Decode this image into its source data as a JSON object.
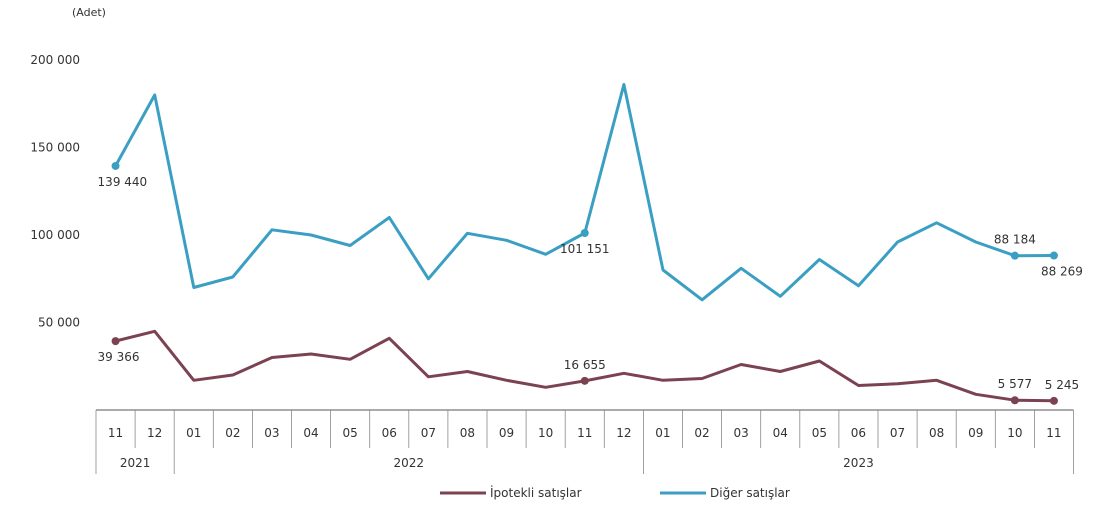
{
  "chart_data": {
    "type": "line",
    "unit_label": "(Adet)",
    "ylim": [
      0,
      200000
    ],
    "y_ticks": [
      50000,
      100000,
      150000,
      200000
    ],
    "y_tick_labels": [
      "50 000",
      "100 000",
      "150 000",
      "200 000"
    ],
    "categories": [
      "11",
      "12",
      "01",
      "02",
      "03",
      "04",
      "05",
      "06",
      "07",
      "08",
      "09",
      "10",
      "11",
      "12",
      "01",
      "02",
      "03",
      "04",
      "05",
      "06",
      "07",
      "08",
      "09",
      "10",
      "11"
    ],
    "years": [
      {
        "label": "2021",
        "start": 0,
        "end": 1
      },
      {
        "label": "2022",
        "start": 2,
        "end": 13
      },
      {
        "label": "2023",
        "start": 14,
        "end": 24
      }
    ],
    "series": [
      {
        "name": "İpotekli satışlar",
        "color": "#7b4252",
        "values": [
          39366,
          45000,
          17000,
          20000,
          30000,
          32000,
          29000,
          41000,
          19000,
          22000,
          17000,
          13000,
          16655,
          21000,
          17000,
          18000,
          26000,
          22000,
          28000,
          14000,
          15000,
          17000,
          9000,
          5577,
          5245
        ],
        "labels": [
          {
            "index": 0,
            "text": "39 366",
            "position": "below"
          },
          {
            "index": 12,
            "text": "16 655",
            "position": "above"
          },
          {
            "index": 23,
            "text": "5 577",
            "position": "above"
          },
          {
            "index": 24,
            "text": "5 245",
            "position": "above"
          }
        ]
      },
      {
        "name": "Diğer satışlar",
        "color": "#3a9fc2",
        "values": [
          139440,
          180000,
          70000,
          76000,
          103000,
          100000,
          94000,
          110000,
          75000,
          101000,
          97000,
          89000,
          101151,
          186000,
          80000,
          63000,
          81000,
          65000,
          86000,
          71000,
          96000,
          107000,
          96000,
          88184,
          88269
        ],
        "labels": [
          {
            "index": 0,
            "text": "139 440",
            "position": "below"
          },
          {
            "index": 12,
            "text": "101 151",
            "position": "below"
          },
          {
            "index": 23,
            "text": "88 184",
            "position": "above"
          },
          {
            "index": 24,
            "text": "88 269",
            "position": "below"
          }
        ]
      }
    ],
    "legend": {
      "placement": "bottom"
    }
  }
}
